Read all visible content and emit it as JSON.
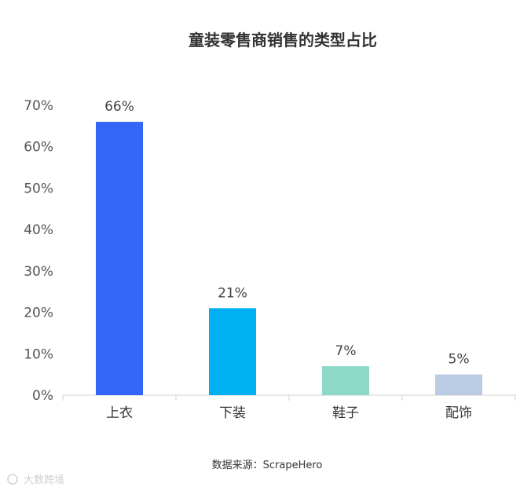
{
  "chart_data": {
    "type": "bar",
    "title": "童装零售商销售的类型占比",
    "categories": [
      "上衣",
      "下装",
      "鞋子",
      "配饰"
    ],
    "values": [
      66,
      21,
      7,
      5
    ],
    "data_labels": [
      "66%",
      "21%",
      "7%",
      "5%"
    ],
    "colors": [
      "#3366F7",
      "#00B0F0",
      "#8DD9C8",
      "#B9CCE4"
    ],
    "ylim": [
      0,
      70
    ],
    "yticks": [
      "0%",
      "10%",
      "20%",
      "30%",
      "40%",
      "50%",
      "60%",
      "70%"
    ],
    "xlabel": "",
    "ylabel": "",
    "grid": false,
    "legend": "none"
  },
  "source": "数据来源：ScrapeHero",
  "watermark": "大数跨境"
}
